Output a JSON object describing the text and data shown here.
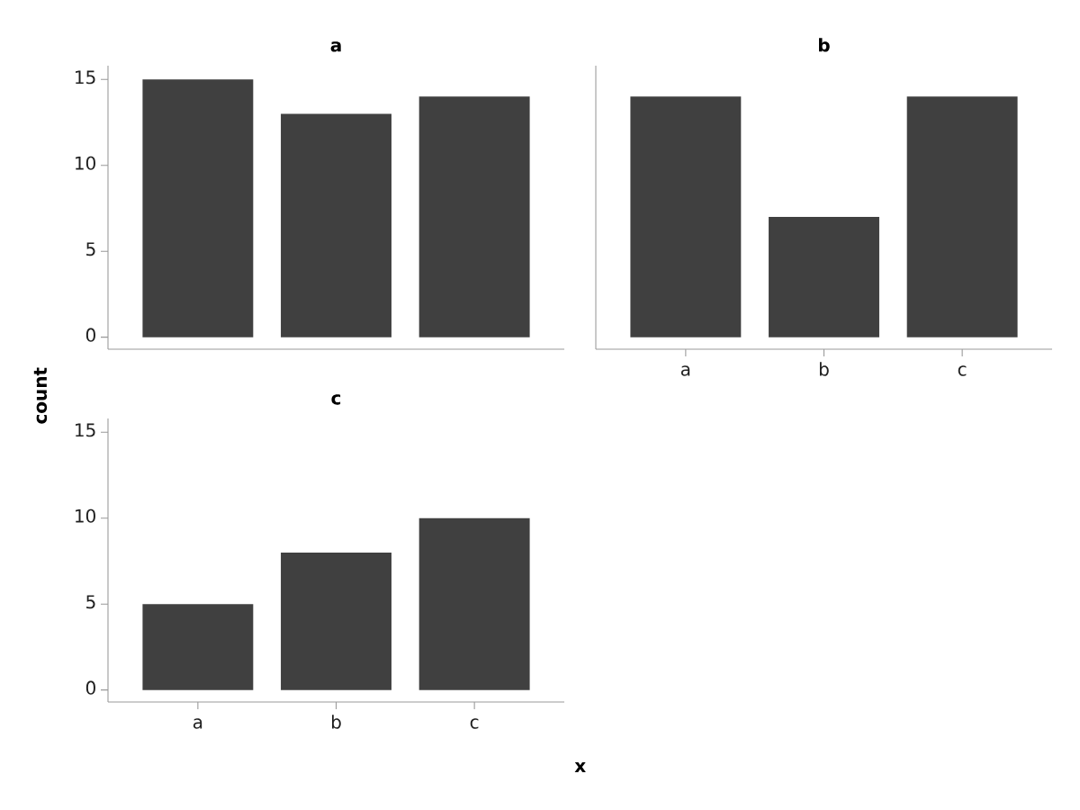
{
  "chart_data": [
    {
      "type": "bar",
      "title": "a",
      "categories": [
        null,
        null,
        null
      ],
      "values": [
        15,
        13,
        14
      ],
      "color": "#404040",
      "ylim": [
        -0.7,
        15.8
      ],
      "yticks": [
        0,
        5,
        10,
        15
      ],
      "tick_labels": "y"
    },
    {
      "type": "bar",
      "title": "b",
      "categories": [
        "a",
        "b",
        "c"
      ],
      "values": [
        14,
        7,
        14
      ],
      "color": "#404040",
      "ylim": [
        -0.7,
        15.8
      ],
      "yticks": [
        0,
        5,
        10,
        15
      ],
      "tick_labels": "x"
    },
    {
      "type": "bar",
      "title": "c",
      "categories": [
        "a",
        "b",
        "c"
      ],
      "values": [
        5,
        8,
        10
      ],
      "color": "#404040",
      "ylim": [
        -0.7,
        15.8
      ],
      "yticks": [
        0,
        5,
        10,
        15
      ],
      "xlabel": "x",
      "ylabel": "count"
    }
  ]
}
